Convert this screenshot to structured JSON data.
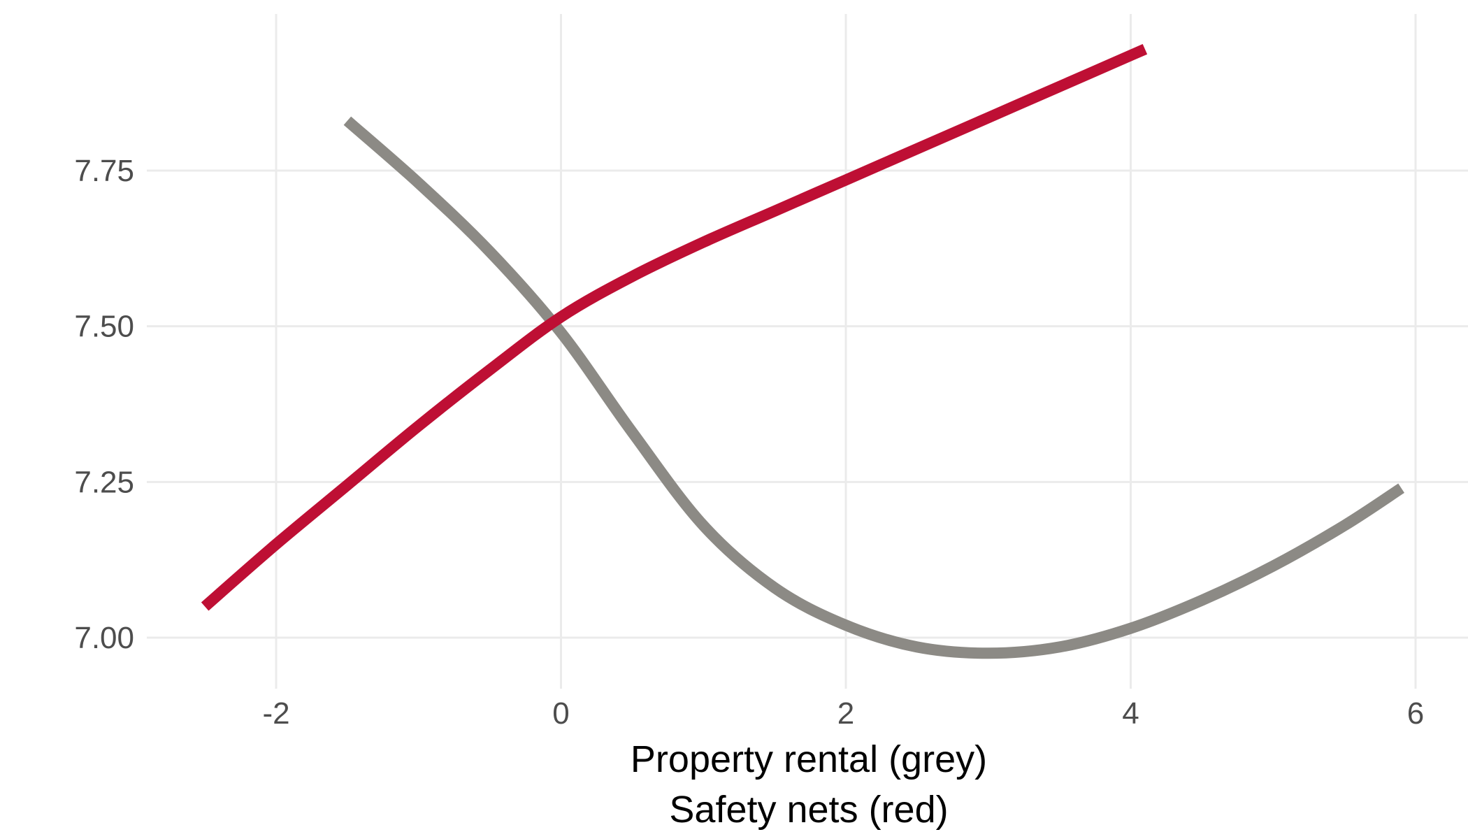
{
  "chart_data": {
    "type": "line",
    "title": "",
    "xlabel_lines": [
      "Property rental (grey)",
      "Safety nets (red)"
    ],
    "ylabel": "",
    "xlim": [
      -3.0,
      6.2
    ],
    "ylim": [
      6.92,
      8.0
    ],
    "x_ticks": [
      -2,
      0,
      2,
      4,
      6
    ],
    "x_tick_labels": [
      "-2",
      "0",
      "2",
      "4",
      "6"
    ],
    "y_ticks": [
      7.0,
      7.25,
      7.5,
      7.75
    ],
    "y_tick_labels": [
      "7.00",
      "7.25",
      "7.50",
      "7.75"
    ],
    "grid": true,
    "legend": "none",
    "series": [
      {
        "key": "property-rental",
        "color": "#8c8a85",
        "x": [
          -1.5,
          -1.0,
          -0.5,
          0.0,
          0.5,
          1.0,
          1.5,
          2.0,
          2.5,
          3.0,
          3.5,
          4.0,
          4.5,
          5.0,
          5.5,
          5.9
        ],
        "y": [
          7.83,
          7.73,
          7.62,
          7.49,
          7.33,
          7.18,
          7.08,
          7.02,
          6.985,
          6.975,
          6.985,
          7.015,
          7.06,
          7.115,
          7.18,
          7.24
        ]
      },
      {
        "key": "safety-nets",
        "color": "#be0f34",
        "x": [
          -2.5,
          -2.0,
          -1.5,
          -1.0,
          -0.5,
          0.0,
          0.5,
          1.0,
          1.5,
          2.0,
          2.5,
          3.0,
          3.5,
          4.0,
          4.1
        ],
        "y": [
          7.05,
          7.15,
          7.245,
          7.34,
          7.43,
          7.515,
          7.58,
          7.635,
          7.685,
          7.735,
          7.785,
          7.835,
          7.885,
          7.935,
          7.945
        ]
      }
    ]
  }
}
